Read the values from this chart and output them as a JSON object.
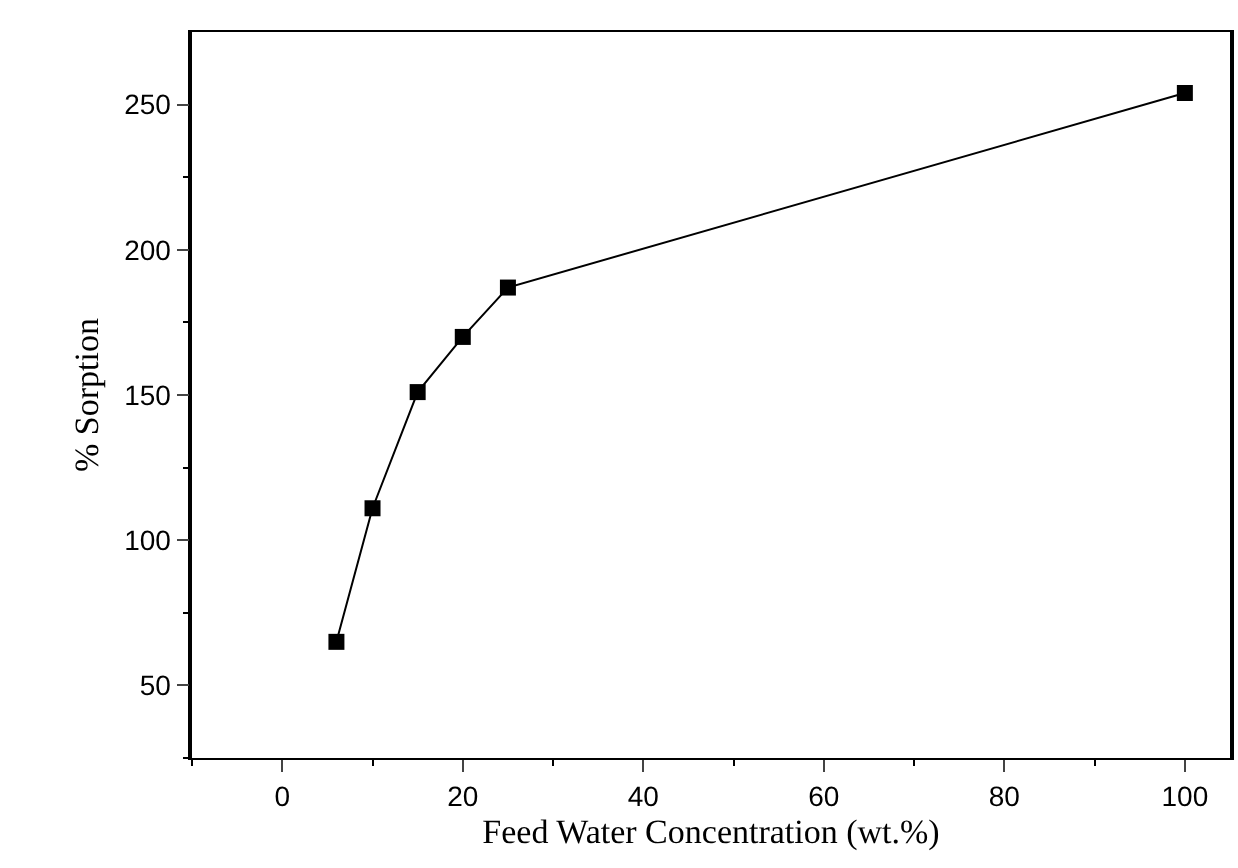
{
  "chart_data": {
    "type": "line",
    "xlabel": "Feed Water Concentration (wt.%)",
    "ylabel": "% Sorption",
    "x": [
      6,
      10,
      15,
      20,
      25,
      100
    ],
    "series": [
      {
        "color": "#000000",
        "values": [
          65,
          111,
          151,
          170,
          187,
          254
        ]
      }
    ],
    "xlim": [
      -10,
      105
    ],
    "xticks": [
      {
        "value": -10,
        "label": null
      },
      0,
      {
        "value": 10,
        "label": null
      },
      20,
      {
        "value": 30,
        "label": null
      },
      40,
      {
        "value": 50,
        "label": null
      },
      60,
      {
        "value": 70,
        "label": null
      },
      80,
      {
        "value": 90,
        "label": null
      },
      100
    ],
    "ylim": [
      25,
      275
    ],
    "yticks": [
      {
        "value": 25,
        "label": null
      },
      50,
      {
        "value": 75,
        "label": null
      },
      100,
      {
        "value": 125,
        "label": null
      },
      150,
      {
        "value": 175,
        "label": null
      },
      200,
      {
        "value": 225,
        "label": null
      },
      250
    ],
    "marker": "square",
    "line_style": "solid"
  }
}
